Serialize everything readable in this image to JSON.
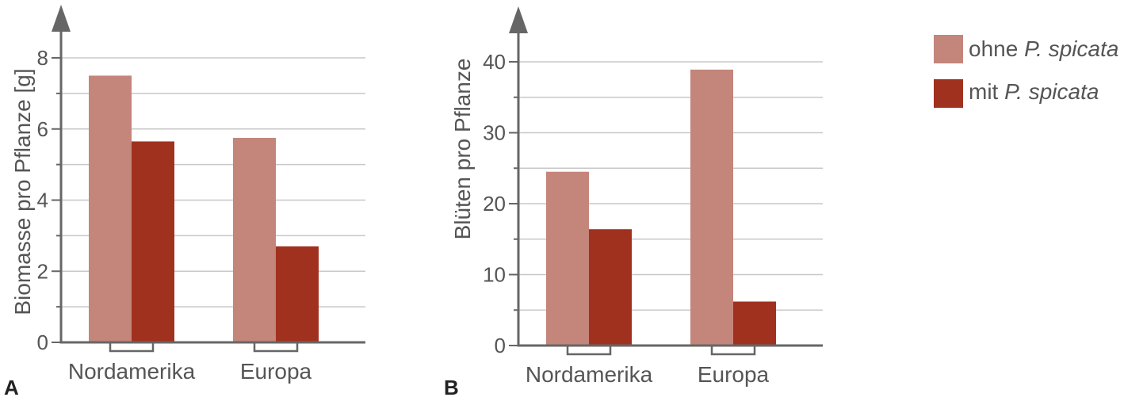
{
  "chart_data": [
    {
      "type": "bar",
      "panel_label": "A",
      "categories": [
        "Nordamerika",
        "Europa"
      ],
      "series": [
        {
          "name": "ohne P. spicata",
          "values": [
            7.5,
            5.75
          ]
        },
        {
          "name": "mit P. spicata",
          "values": [
            5.65,
            2.7
          ]
        }
      ],
      "xlabel": "",
      "ylabel": "Biomasse pro Pflanze [g]",
      "ylim": [
        0,
        8
      ],
      "yticks": [
        "0",
        "2",
        "4",
        "6",
        "8"
      ],
      "grid": true
    },
    {
      "type": "bar",
      "panel_label": "B",
      "categories": [
        "Nordamerika",
        "Europa"
      ],
      "series": [
        {
          "name": "ohne P. spicata",
          "values": [
            24.5,
            38.9
          ]
        },
        {
          "name": "mit P. spicata",
          "values": [
            16.4,
            6.2
          ]
        }
      ],
      "xlabel": "",
      "ylabel": "Blüten pro Pflanze",
      "ylim": [
        0,
        40
      ],
      "yticks": [
        "0",
        "10",
        "20",
        "30",
        "40"
      ],
      "grid": true
    }
  ],
  "legend": {
    "placement": "top-right",
    "items": [
      {
        "prefix": "ohne ",
        "species": "P. spicata",
        "color": "#c4857a"
      },
      {
        "prefix": "mit ",
        "species": "P. spicata",
        "color": "#a0311f"
      }
    ]
  },
  "colors": {
    "axis": "#666666",
    "grid": "#c8c8c8",
    "text": "#555555",
    "panel_label": "#222222"
  }
}
